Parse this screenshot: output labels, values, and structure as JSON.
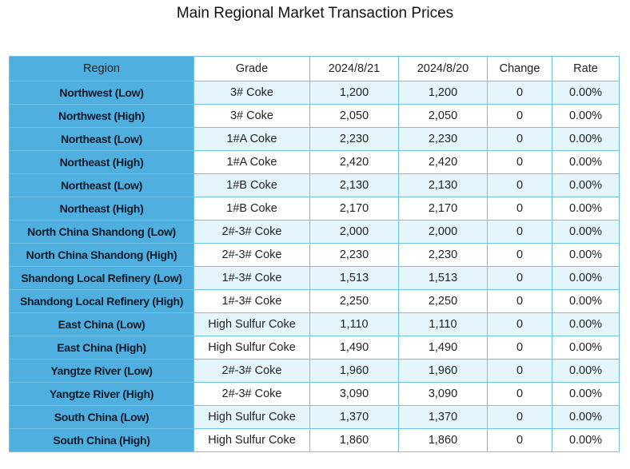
{
  "title": "Main Regional Market Transaction Prices",
  "columns": [
    "Region",
    "Grade",
    "2024/8/21",
    "2024/8/20",
    "Change",
    "Rate"
  ],
  "rows": [
    [
      "Northwest (Low)",
      "3# Coke",
      "1,200",
      "1,200",
      "0",
      "0.00%"
    ],
    [
      "Northwest (High)",
      "3# Coke",
      "2,050",
      "2,050",
      "0",
      "0.00%"
    ],
    [
      "Northeast (Low)",
      "1#A Coke",
      "2,230",
      "2,230",
      "0",
      "0.00%"
    ],
    [
      "Northeast (High)",
      "1#A Coke",
      "2,420",
      "2,420",
      "0",
      "0.00%"
    ],
    [
      "Northeast (Low)",
      "1#B Coke",
      "2,130",
      "2,130",
      "0",
      "0.00%"
    ],
    [
      "Northeast (High)",
      "1#B Coke",
      "2,170",
      "2,170",
      "0",
      "0.00%"
    ],
    [
      "North China Shandong (Low)",
      "2#-3# Coke",
      "2,000",
      "2,000",
      "0",
      "0.00%"
    ],
    [
      "North China Shandong (High)",
      "2#-3# Coke",
      "2,230",
      "2,230",
      "0",
      "0.00%"
    ],
    [
      "Shandong Local Refinery (Low)",
      "1#-3# Coke",
      "1,513",
      "1,513",
      "0",
      "0.00%"
    ],
    [
      "Shandong Local Refinery (High)",
      "1#-3# Coke",
      "2,250",
      "2,250",
      "0",
      "0.00%"
    ],
    [
      "East China (Low)",
      "High Sulfur Coke",
      "1,110",
      "1,110",
      "0",
      "0.00%"
    ],
    [
      "East China (High)",
      "High Sulfur Coke",
      "1,490",
      "1,490",
      "0",
      "0.00%"
    ],
    [
      "Yangtze River (Low)",
      "2#-3# Coke",
      "1,960",
      "1,960",
      "0",
      "0.00%"
    ],
    [
      "Yangtze River (High)",
      "2#-3# Coke",
      "3,090",
      "3,090",
      "0",
      "0.00%"
    ],
    [
      "South China (Low)",
      "High Sulfur Coke",
      "1,370",
      "1,370",
      "0",
      "0.00%"
    ],
    [
      "South China (High)",
      "High Sulfur Coke",
      "1,860",
      "1,860",
      "0",
      "0.00%"
    ]
  ],
  "colors": {
    "region_bg": "#4fb0df",
    "stripe_bg": "#e4f6fb",
    "border": "#6fc3e6"
  }
}
